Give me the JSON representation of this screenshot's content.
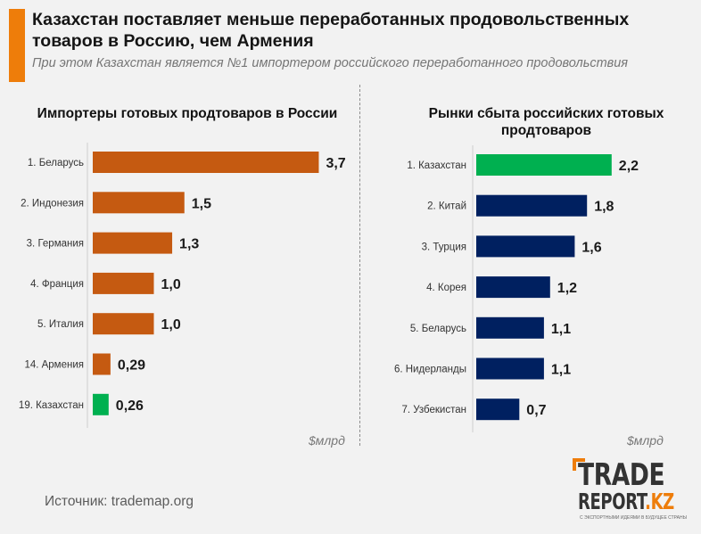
{
  "header": {
    "title": "Казахстан поставляет меньше переработанных продовольственных товаров в Россию, чем Армения",
    "subtitle": "При этом Казахстан является №1 импортером российского переработанного продовольствия"
  },
  "chart_data": [
    {
      "type": "bar",
      "orientation": "horizontal",
      "title": "Импортеры готовых продтоваров в России",
      "unit": "$млрд",
      "categories": [
        "1. Беларусь",
        "2. Индонезия",
        "3. Германия",
        "4. Франция",
        "5. Италия",
        "14. Армения",
        "19. Казахстан"
      ],
      "values": [
        3.7,
        1.5,
        1.3,
        1.0,
        1.0,
        0.29,
        0.26
      ],
      "value_labels": [
        "3,7",
        "1,5",
        "1,3",
        "1,0",
        "1,0",
        "0,29",
        "0,26"
      ],
      "colors": [
        "#c55a11",
        "#c55a11",
        "#c55a11",
        "#c55a11",
        "#c55a11",
        "#c55a11",
        "#00b050"
      ]
    },
    {
      "type": "bar",
      "orientation": "horizontal",
      "title": "Рынки сбыта российских готовых продтоваров",
      "unit": "$млрд",
      "categories": [
        "1. Казахстан",
        "2. Китай",
        "3. Турция",
        "4. Корея",
        "5. Беларусь",
        "6. Нидерланды",
        "7. Узбекистан"
      ],
      "values": [
        2.2,
        1.8,
        1.6,
        1.2,
        1.1,
        1.1,
        0.7
      ],
      "value_labels": [
        "2,2",
        "1,8",
        "1,6",
        "1,2",
        "1,1",
        "1,1",
        "0,7"
      ],
      "colors": [
        "#00b050",
        "#002060",
        "#002060",
        "#002060",
        "#002060",
        "#002060",
        "#002060"
      ]
    }
  ],
  "footer": {
    "source": "Источник: trademap.org",
    "logo_line1": "TRADE",
    "logo_line2": "REPORT",
    "logo_line2_suffix": ".KZ",
    "logo_tagline": "С ЭКСПОРТНЫМИ ИДЕЯМИ В БУДУЩЕЕ СТРАНЫ"
  }
}
